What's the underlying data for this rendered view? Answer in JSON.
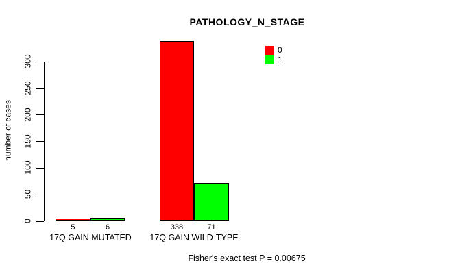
{
  "title": "PATHOLOGY_N_STAGE",
  "footer": "Fisher's exact test P = 0.00675",
  "chart_data": {
    "type": "bar",
    "title": "PATHOLOGY_N_STAGE",
    "xlabel": "",
    "ylabel": "number of cases",
    "categories": [
      "17Q GAIN MUTATED",
      "17Q GAIN WILD-TYPE"
    ],
    "series": [
      {
        "name": "0",
        "color": "#FF0000",
        "values": [
          5,
          338
        ]
      },
      {
        "name": "1",
        "color": "#00FF00",
        "values": [
          6,
          71
        ]
      }
    ],
    "ylim": [
      0,
      300
    ],
    "yticks": [
      0,
      50,
      100,
      150,
      200,
      250,
      300
    ],
    "bar_value_labels": [
      [
        5,
        338
      ],
      [
        6,
        71
      ]
    ],
    "grid": false,
    "legend_position": "top-right",
    "annotation": "Fisher's exact test P = 0.00675"
  }
}
